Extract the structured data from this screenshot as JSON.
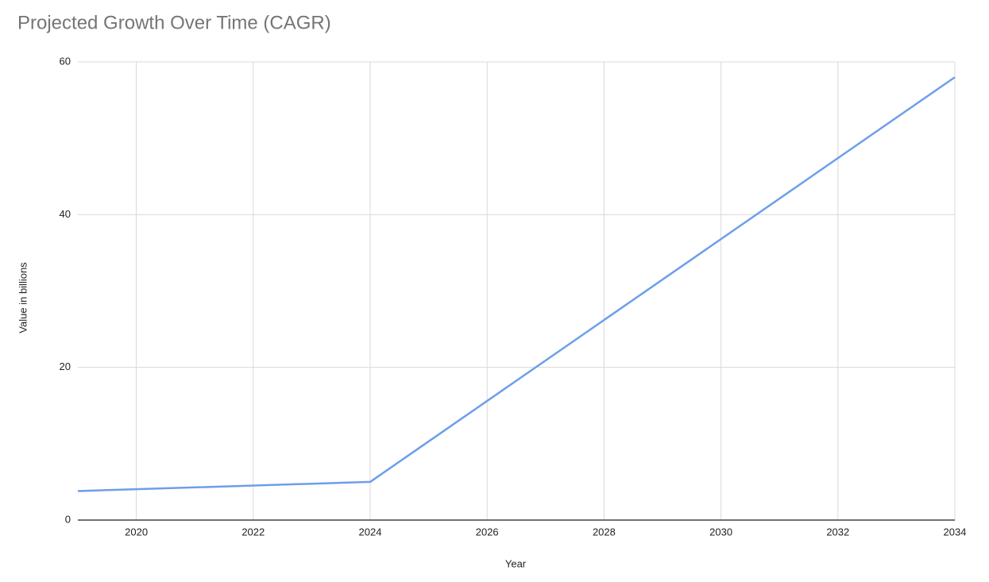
{
  "chart_data": {
    "type": "line",
    "title": "Projected Growth Over Time (CAGR)",
    "x_label": "Year",
    "y_label": "Value in billions",
    "x": [
      2019,
      2024,
      2034
    ],
    "series": [
      {
        "name": "Value",
        "color": "#6d9eeb",
        "values": [
          3.8,
          5.0,
          58
        ]
      }
    ],
    "xlim": [
      2019,
      2034
    ],
    "xticks": [
      2020,
      2022,
      2024,
      2026,
      2028,
      2030,
      2032,
      2034
    ],
    "ylim": [
      0,
      60
    ],
    "yticks": [
      0,
      20,
      40,
      60
    ],
    "grid": true
  }
}
